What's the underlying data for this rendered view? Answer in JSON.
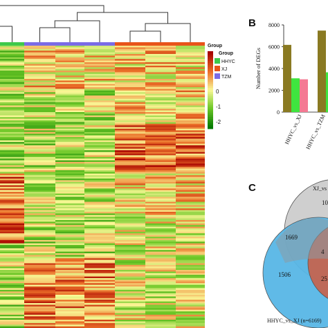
{
  "colors": {
    "hhyc": "#3ec94b",
    "xj": "#e8541a",
    "tzm": "#7b6be6",
    "olive": "#8a7a22",
    "green_bar": "#3fe53f",
    "pink": "#f47a93",
    "venn_grey": "#cfcfcf",
    "venn_blue": "#57b6e6",
    "venn_red": "#cf5a3f"
  },
  "chart_data": [
    {
      "type": "heatmap",
      "title": "",
      "groups": [
        {
          "name": "HHYC",
          "columns": 1,
          "color": "#3ec94b"
        },
        {
          "name": "XJ",
          "columns": 3,
          "color": "#7b6be6"
        },
        {
          "name": "TZM",
          "columns": 3,
          "color": "#e8541a"
        }
      ],
      "legend": {
        "title_scale": "Group",
        "title_group": "Group",
        "scale_ticks": [
          "2",
          "1",
          "0",
          "-1",
          "-2"
        ],
        "scale_range": [
          -2.5,
          2.5
        ],
        "group_entries": [
          {
            "label": "HHYC",
            "color": "#3ec94b"
          },
          {
            "label": "XJ",
            "color": "#e8541a"
          },
          {
            "label": "TZM",
            "color": "#7b6be6"
          }
        ]
      }
    },
    {
      "type": "bar",
      "panel_label": "B",
      "title": "",
      "ylabel": "Number of DEGs",
      "xlabel": "",
      "ylim": [
        0,
        8000
      ],
      "yticks": [
        "0",
        "2000",
        "4000",
        "6000",
        "8000"
      ],
      "categories": [
        "HHYC_vs_XJ",
        "HHYC_vs_TZM"
      ],
      "series": [
        {
          "values": [
            6169,
            7480
          ],
          "color": "#8a7a22"
        },
        {
          "values": [
            3100,
            3650
          ],
          "color": "#3fe53f"
        },
        {
          "values": [
            3010,
            null
          ],
          "color": "#f47a93"
        }
      ]
    },
    {
      "type": "venn",
      "panel_label": "C",
      "sets": [
        {
          "label": "XJ_vs",
          "color": "#cfcfcf"
        },
        {
          "label": "HHYC_vs_XJ (n=6169)",
          "color": "#57b6e6"
        },
        {
          "label": "",
          "color": "#cf5a3f"
        }
      ],
      "regions": [
        {
          "label": "1506"
        },
        {
          "label": "1669"
        },
        {
          "label": "10"
        },
        {
          "label": "4"
        },
        {
          "label": "25"
        }
      ]
    }
  ]
}
